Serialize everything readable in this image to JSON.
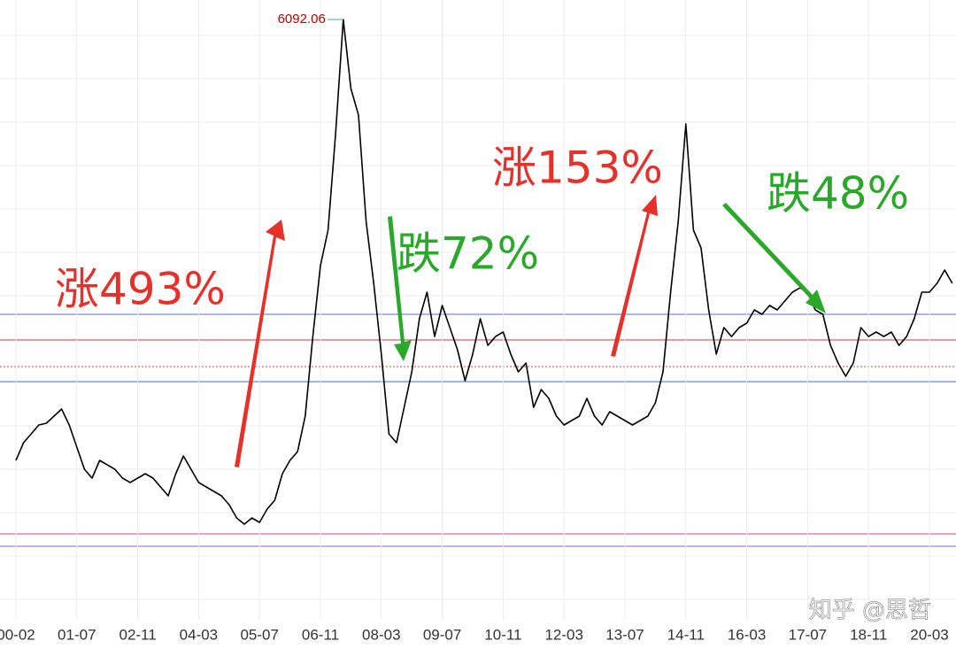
{
  "chart_data": {
    "type": "line",
    "categories": [
      "00-02",
      null,
      null,
      null,
      null,
      null,
      null,
      null,
      "01-07",
      null,
      null,
      null,
      null,
      null,
      null,
      null,
      "02-11",
      null,
      null,
      null,
      null,
      null,
      null,
      null,
      "04-03",
      null,
      null,
      null,
      null,
      null,
      null,
      null,
      "05-07",
      null,
      null,
      null,
      null,
      null,
      null,
      null,
      "06-11",
      null,
      null,
      null,
      null,
      null,
      null,
      null,
      "08-03",
      null,
      null,
      null,
      null,
      null,
      null,
      null,
      "09-07",
      null,
      null,
      null,
      null,
      null,
      null,
      null,
      "10-11",
      null,
      null,
      null,
      null,
      null,
      null,
      null,
      "12-03",
      null,
      null,
      null,
      null,
      null,
      null,
      null,
      "13-07",
      null,
      null,
      null,
      null,
      null,
      null,
      null,
      "14-11",
      null,
      null,
      null,
      null,
      null,
      null,
      null,
      "16-03",
      null,
      null,
      null,
      null,
      null,
      null,
      null,
      "17-07",
      null,
      null,
      null,
      null,
      null,
      null,
      null,
      "18-11",
      null,
      null,
      null,
      null,
      null,
      null,
      null,
      "20-03",
      null,
      null,
      null
    ],
    "values": [
      1665,
      1843,
      1931,
      2020,
      2038,
      2109,
      2180,
      2020,
      1798,
      1576,
      1487,
      1665,
      1620,
      1576,
      1487,
      1443,
      1487,
      1531,
      1487,
      1398,
      1309,
      1531,
      1709,
      1576,
      1443,
      1398,
      1354,
      1309,
      1220,
      1087,
      1025,
      1087,
      1042,
      1176,
      1265,
      1531,
      1665,
      1754,
      2109,
      2909,
      3621,
      3976,
      4954,
      6092.06,
      5399,
      5132,
      4065,
      3443,
      2732,
      1931,
      1843,
      2198,
      2554,
      3087,
      3354,
      2909,
      3221,
      2998,
      2776,
      2465,
      2732,
      3087,
      2820,
      2909,
      2954,
      2732,
      2554,
      2643,
      2198,
      2376,
      2287,
      2109,
      2020,
      2065,
      2109,
      2287,
      2109,
      2020,
      2154,
      2109,
      2065,
      2020,
      2065,
      2109,
      2243,
      2554,
      3354,
      4065,
      5043,
      3976,
      3798,
      3176,
      2732,
      2998,
      2909,
      2998,
      3043,
      3176,
      3132,
      3221,
      3176,
      3265,
      3354,
      3398,
      3354,
      3176,
      3132,
      2820,
      2643,
      2509,
      2643,
      2998,
      2909,
      2954,
      2909,
      2954,
      2820,
      2909,
      3087,
      3354,
      3354,
      3443,
      3576,
      3443
    ],
    "color": "#000000",
    "ylim": [
      -229,
      6288
    ],
    "grid": true,
    "annotations": [
      {
        "text": "涨493%",
        "color": "#e8302a"
      },
      {
        "text": "跌72%",
        "color": "#2aa82a"
      },
      {
        "text": "涨153%",
        "color": "#e8302a"
      },
      {
        "text": "跌48%",
        "color": "#2aa82a"
      }
    ],
    "watermark": "知乎 @思哲"
  }
}
